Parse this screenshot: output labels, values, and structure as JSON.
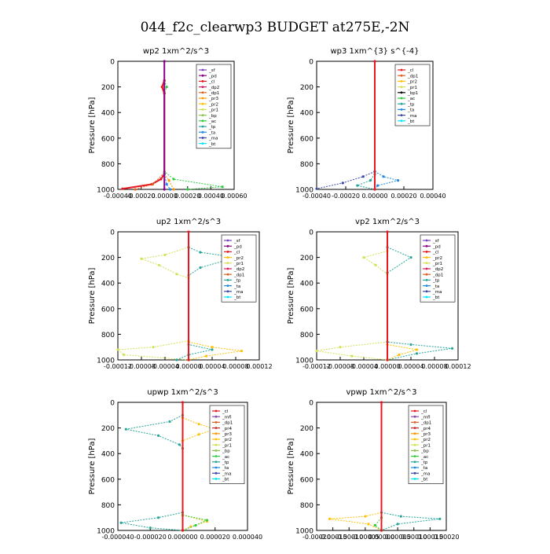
{
  "page": {
    "title": "044_f2c_clearwp3  BUDGET at275E,-2N"
  },
  "colors": {
    "_sf": "#7b3fc4",
    "_pd": "#8b008b",
    "_cl": "#e8171f",
    "_dp2": "#d81b60",
    "_dp1": "#e06020",
    "_pr3": "#ff9800",
    "_pr2": "#ffc107",
    "_pr1": "#d4e157",
    "_bp": "#8bc34a",
    "_ac": "#2ecc40",
    "_tp": "#26a69a",
    "_ta": "#1e88e5",
    "_ma": "#3949ab",
    "_bt": "#00e5ff",
    "_mfl": "#8e44ad",
    "_pr4": "#c62828"
  },
  "chart_data": [
    {
      "type": "line",
      "title": "wp2  1xm^2/s^3",
      "ylabel": "Pressure [hPa]",
      "ylim": [
        1000,
        0
      ],
      "xlim": [
        -0.0004,
        0.0006
      ],
      "xticks": [
        "-0.00040",
        "-0.00020",
        "0.00000",
        "0.00020",
        "0.00040",
        "0.00060"
      ],
      "yticks": [
        "0",
        "200",
        "400",
        "600",
        "800",
        "1000"
      ],
      "legend_position": "top-right",
      "legend": [
        "_sf",
        "_pd",
        "_cl",
        "_dp2",
        "_dp1",
        "_pr3",
        "_pr2",
        "_pr1",
        "_bp",
        "_ac",
        "_tp",
        "_ta",
        "_ma",
        "_bt"
      ],
      "series": [
        {
          "name": "_ac",
          "points": [
            [
              0.0,
              150
            ],
            [
              2e-05,
              200
            ],
            [
              0.0,
              250
            ],
            [
              0.0,
              860
            ],
            [
              8e-05,
              920
            ],
            [
              0.0005,
              980
            ],
            [
              0.0002,
              1000
            ]
          ]
        },
        {
          "name": "_cl",
          "points": [
            [
              0.0,
              150
            ],
            [
              -2e-05,
              200
            ],
            [
              0.0,
              250
            ],
            [
              0.0,
              880
            ],
            [
              -3e-05,
              920
            ],
            [
              -0.00011,
              960
            ],
            [
              -0.00036,
              995
            ]
          ]
        },
        {
          "name": "_dp1",
          "points": [
            [
              0.0,
              870
            ],
            [
              -0.0001,
              960
            ],
            [
              -0.00025,
              1000
            ]
          ]
        },
        {
          "name": "_pr3",
          "points": [
            [
              0.0,
              880
            ],
            [
              4e-05,
              930
            ],
            [
              8e-05,
              1000
            ]
          ]
        },
        {
          "name": "_ta",
          "points": [
            [
              0.0,
              880
            ],
            [
              2e-05,
              960
            ],
            [
              5e-05,
              1000
            ]
          ]
        },
        {
          "name": "_pd",
          "points": [
            [
              0.0,
              0
            ],
            [
              0.0,
              1000
            ]
          ]
        }
      ]
    },
    {
      "type": "line",
      "title": "wp3  1xm^{3} s^{-4}",
      "ylabel": "Pressure [hPa]",
      "ylim": [
        1000,
        0
      ],
      "xlim": [
        -0.0004,
        0.0004
      ],
      "xticks": [
        "-0.00040",
        "-0.00020",
        "0.00000",
        "0.00020",
        "0.00040"
      ],
      "yticks": [
        "0",
        "200",
        "400",
        "600",
        "800",
        "1000"
      ],
      "legend_position": "top-right",
      "legend": [
        "_cl",
        "_dp1",
        "_pr2",
        "_pr1",
        "_bp1",
        "_ac",
        "_tp",
        "_ta",
        "_ma",
        "_bt"
      ],
      "series": [
        {
          "name": "_ma",
          "points": [
            [
              0.0,
              860
            ],
            [
              -8e-05,
              900
            ],
            [
              -0.00022,
              950
            ],
            [
              -0.0004,
              995
            ]
          ]
        },
        {
          "name": "_ta",
          "points": [
            [
              0.0,
              860
            ],
            [
              6e-05,
              900
            ],
            [
              0.00016,
              930
            ],
            [
              2e-05,
              970
            ],
            [
              0.0,
              1000
            ]
          ]
        },
        {
          "name": "_tp",
          "points": [
            [
              0.0,
              880
            ],
            [
              -3e-05,
              930
            ],
            [
              -0.00012,
              970
            ],
            [
              0.0,
              1000
            ]
          ]
        },
        {
          "name": "_cl",
          "points": [
            [
              0.0,
              0
            ],
            [
              0.0,
              1000
            ]
          ]
        }
      ]
    },
    {
      "type": "line",
      "title": "up2  1xm^2/s^3",
      "ylabel": "Pressure [hPa]",
      "ylim": [
        1000,
        0
      ],
      "xlim": [
        -0.00012,
        0.00012
      ],
      "xticks": [
        "-0.00012",
        "-0.00008",
        "-0.00004",
        "0.00000",
        "0.00004",
        "0.00008",
        "0.00012"
      ],
      "yticks": [
        "0",
        "200",
        "400",
        "600",
        "800",
        "1000"
      ],
      "legend_position": "top-right",
      "legend": [
        "_sf",
        "_pd",
        "_cl",
        "_pr2",
        "_pr1",
        "_dp2",
        "_dp1",
        "_tp",
        "_ta",
        "_ma",
        "_bt"
      ],
      "series": [
        {
          "name": "_pr1",
          "points": [
            [
              0.0,
              120
            ],
            [
              -4e-05,
              180
            ],
            [
              -8e-05,
              210
            ],
            [
              -5e-05,
              260
            ],
            [
              -2e-05,
              330
            ],
            [
              0.0,
              360
            ],
            [
              0.0,
              850
            ],
            [
              -6e-05,
              900
            ],
            [
              -0.00012,
              920
            ],
            [
              -0.00011,
              960
            ],
            [
              0.0,
              1000
            ]
          ]
        },
        {
          "name": "_tp",
          "points": [
            [
              0.0,
              120
            ],
            [
              2e-05,
              160
            ],
            [
              8e-05,
              200
            ],
            [
              2e-05,
              280
            ],
            [
              0.0,
              340
            ],
            [
              0.0,
              880
            ],
            [
              4e-05,
              920
            ],
            [
              0.0,
              960
            ],
            [
              -2e-05,
              1000
            ]
          ]
        },
        {
          "name": "_pr2",
          "points": [
            [
              0.0,
              860
            ],
            [
              4e-05,
              900
            ],
            [
              9e-05,
              930
            ],
            [
              3e-05,
              970
            ],
            [
              0.0,
              1000
            ]
          ]
        },
        {
          "name": "_cl",
          "points": [
            [
              0.0,
              0
            ],
            [
              0.0,
              1000
            ]
          ]
        }
      ]
    },
    {
      "type": "line",
      "title": "vp2  1xm^2/s^3",
      "ylabel": "Pressure [hPa]",
      "ylim": [
        1000,
        0
      ],
      "xlim": [
        -0.00012,
        0.00012
      ],
      "xticks": [
        "-0.00012",
        "-0.00008",
        "-0.00004",
        "0.00000",
        "0.00004",
        "0.00008",
        "0.00012"
      ],
      "yticks": [
        "0",
        "200",
        "400",
        "600",
        "800",
        "1000"
      ],
      "legend_position": "top-right",
      "legend": [
        "_sf",
        "_pd",
        "_cl",
        "_pr2",
        "_pr1",
        "_dp2",
        "_dp1",
        "_tp",
        "_ta",
        "_ma",
        "_bt"
      ],
      "series": [
        {
          "name": "_pr1",
          "points": [
            [
              0.0,
              150
            ],
            [
              -4e-05,
              200
            ],
            [
              -2e-05,
              260
            ],
            [
              0.0,
              330
            ],
            [
              0.0,
              860
            ],
            [
              -8e-05,
              900
            ],
            [
              -0.00012,
              930
            ],
            [
              -6e-05,
              970
            ],
            [
              0.0,
              1000
            ]
          ]
        },
        {
          "name": "_tp",
          "points": [
            [
              0.0,
              120
            ],
            [
              4e-05,
              200
            ],
            [
              0.0,
              320
            ],
            [
              0.0,
              860
            ],
            [
              4e-05,
              880
            ],
            [
              0.00011,
              910
            ],
            [
              5e-05,
              950
            ],
            [
              0.0,
              1000
            ]
          ]
        },
        {
          "name": "_pr2",
          "points": [
            [
              0.0,
              880
            ],
            [
              5e-05,
              920
            ],
            [
              2e-05,
              960
            ],
            [
              0.0,
              1000
            ]
          ]
        },
        {
          "name": "_cl",
          "points": [
            [
              0.0,
              0
            ],
            [
              0.0,
              1000
            ]
          ]
        }
      ]
    },
    {
      "type": "line",
      "title": "upwp  1xm^2/s^3",
      "ylabel": "Pressure [hPa]",
      "ylim": [
        1000,
        0
      ],
      "xlim": [
        -4e-05,
        4e-05
      ],
      "xticks": [
        "-0.000040",
        "-0.000020",
        "0.000000",
        "0.000020",
        "0.000040"
      ],
      "yticks": [
        "0",
        "200",
        "400",
        "600",
        "800",
        "1000"
      ],
      "legend_position": "top-right",
      "legend": [
        "_cl",
        "_mfl",
        "_dp1",
        "_pr4",
        "_pr3",
        "_pr2",
        "_pr1",
        "_bp",
        "_ac",
        "_tp",
        "_ta",
        "_ma",
        "_bt"
      ],
      "series": [
        {
          "name": "_tp",
          "points": [
            [
              0.0,
              100
            ],
            [
              -8e-06,
              150
            ],
            [
              -3.5e-05,
              210
            ],
            [
              -1.5e-05,
              260
            ],
            [
              -2e-06,
              330
            ],
            [
              0.0,
              360
            ],
            [
              0.0,
              860
            ],
            [
              -1.5e-05,
              900
            ],
            [
              -3.8e-05,
              940
            ],
            [
              -2e-05,
              980
            ],
            [
              0.0,
              1000
            ]
          ]
        },
        {
          "name": "_pr2",
          "points": [
            [
              0.0,
              120
            ],
            [
              1e-05,
              170
            ],
            [
              2e-05,
              210
            ],
            [
              1e-05,
              250
            ],
            [
              0.0,
              300
            ],
            [
              0.0,
              880
            ],
            [
              1.5e-05,
              930
            ],
            [
              5e-06,
              970
            ],
            [
              0.0,
              1000
            ]
          ]
        },
        {
          "name": "_ac",
          "points": [
            [
              0.0,
              880
            ],
            [
              1.5e-05,
              920
            ],
            [
              8e-06,
              960
            ],
            [
              0.0,
              1000
            ]
          ]
        },
        {
          "name": "_cl",
          "points": [
            [
              0.0,
              0
            ],
            [
              0.0,
              1000
            ]
          ]
        }
      ]
    },
    {
      "type": "line",
      "title": "vpwp  1xm^2/s^3",
      "ylabel": "Pressure [hPa]",
      "ylim": [
        1000,
        0
      ],
      "xlim": [
        -0.0002,
        0.0002
      ],
      "xticks": [
        "-0.00020",
        "-0.00015",
        "-0.00010",
        "-0.00005",
        "0.00000",
        "0.00005",
        "0.00010",
        "0.00015",
        "0.00020"
      ],
      "yticks": [
        "0",
        "200",
        "400",
        "600",
        "800",
        "1000"
      ],
      "legend_position": "top-right",
      "legend": [
        "_cl",
        "_mfl",
        "_dp1",
        "_pr4",
        "_pr3",
        "_pr2",
        "_pr1",
        "_bp",
        "_ac",
        "_tp",
        "_ta",
        "_ma",
        "_bt"
      ],
      "series": [
        {
          "name": "_pr2",
          "points": [
            [
              0.0,
              860
            ],
            [
              -5e-05,
              890
            ],
            [
              -0.00016,
              910
            ],
            [
              -4e-05,
              950
            ],
            [
              0.0,
              1000
            ]
          ]
        },
        {
          "name": "_tp",
          "points": [
            [
              0.0,
              860
            ],
            [
              6e-05,
              890
            ],
            [
              0.00018,
              910
            ],
            [
              5e-05,
              950
            ],
            [
              0.0,
              1000
            ]
          ]
        },
        {
          "name": "_ac",
          "points": [
            [
              0.0,
              900
            ],
            [
              -2e-05,
              960
            ],
            [
              0.0,
              1000
            ]
          ]
        },
        {
          "name": "_cl",
          "points": [
            [
              0.0,
              0
            ],
            [
              0.0,
              1000
            ]
          ]
        }
      ]
    }
  ]
}
